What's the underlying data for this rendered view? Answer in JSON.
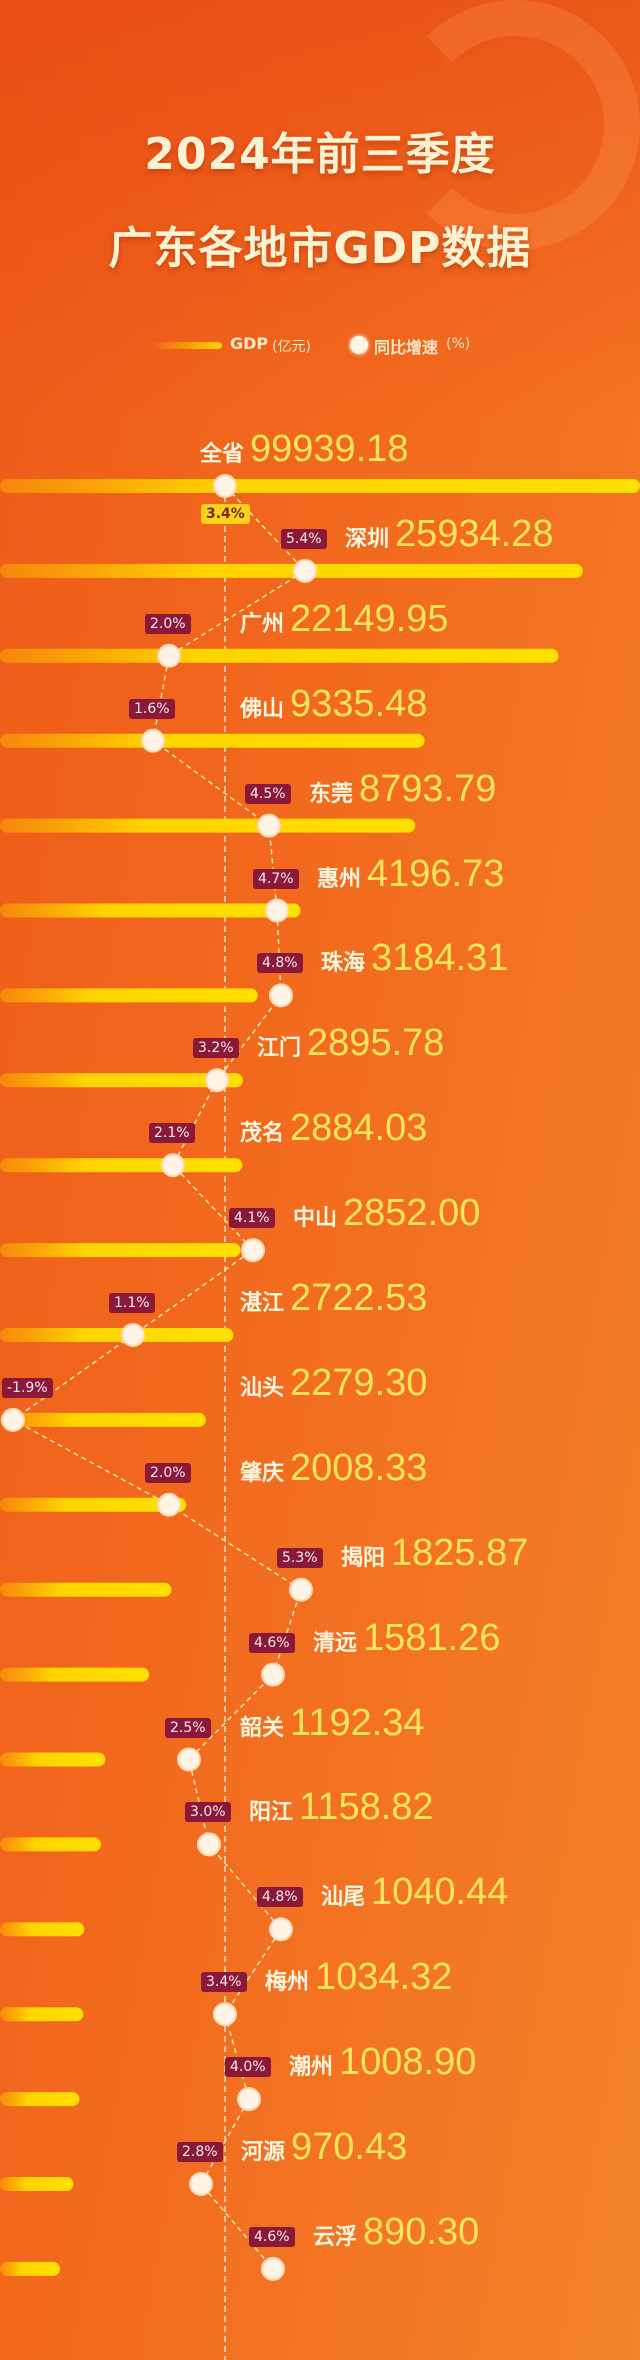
{
  "title": {
    "line1": "2024年前三季度",
    "line2": "广东各地市GDP数据"
  },
  "legend": {
    "gdp_label": "GDP",
    "gdp_unit": "(亿元)",
    "growth_label": "同比增速",
    "growth_unit": "(%)"
  },
  "colors": {
    "bar": "#ffd400",
    "badge": "#8a1838",
    "total_badge": "#ffd21a",
    "dot": "#fff3e6",
    "background": "#f26a1e"
  },
  "chart_data": {
    "type": "bar",
    "title": "2024年前三季度 广东各地市GDP数据",
    "orientation": "horizontal",
    "categories": [
      "全省",
      "深圳",
      "广州",
      "佛山",
      "东莞",
      "惠州",
      "珠海",
      "江门",
      "茂名",
      "中山",
      "湛江",
      "汕头",
      "肇庆",
      "揭阳",
      "清远",
      "韶关",
      "阳江",
      "汕尾",
      "梅州",
      "潮州",
      "河源",
      "云浮"
    ],
    "series": [
      {
        "name": "GDP(亿元)",
        "type": "bar",
        "values": [
          "99939.18",
          "25934.28",
          "22149.95",
          "9335.48",
          "8793.79",
          "4196.73",
          "3184.31",
          "2895.78",
          "2884.03",
          "2852.00",
          "2722.53",
          "2279.30",
          "2008.33",
          "1825.87",
          "1581.26",
          "1192.34",
          "1158.82",
          "1040.44",
          "1034.32",
          "1008.90",
          "970.43",
          "890.30"
        ]
      },
      {
        "name": "同比增速(%)",
        "type": "line",
        "values": [
          "3.4",
          "5.4",
          "2.0",
          "1.6",
          "4.5",
          "4.7",
          "4.8",
          "3.2",
          "2.1",
          "4.1",
          "1.1",
          "-1.9",
          "2.0",
          "5.3",
          "4.6",
          "2.5",
          "3.0",
          "4.8",
          "3.4",
          "4.0",
          "2.8",
          "4.6"
        ]
      }
    ],
    "reference_line": "3.4",
    "grid": false,
    "legend_position": "top"
  }
}
